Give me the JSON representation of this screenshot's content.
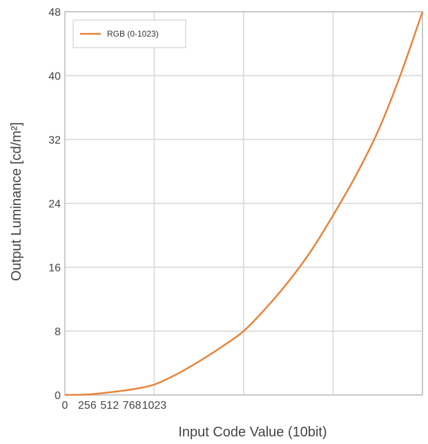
{
  "chart_data": {
    "type": "line",
    "xlabel": "Input Code Value (10bit)",
    "ylabel": "Output Luminance [cd/m²]",
    "xlim": [
      0,
      4095
    ],
    "ylim": [
      0,
      48
    ],
    "x_ticks": [
      {
        "value": 0,
        "label": "0"
      },
      {
        "value": 256,
        "label": "256"
      },
      {
        "value": 512,
        "label": "512"
      },
      {
        "value": 768,
        "label": "768"
      },
      {
        "value": 1023,
        "label": "1023"
      }
    ],
    "x_grid": [
      1023,
      2047,
      3071,
      4095
    ],
    "y_ticks": [
      0,
      8,
      16,
      24,
      32,
      40,
      48
    ],
    "grid": true,
    "legend": {
      "placement": "top-left"
    },
    "series": [
      {
        "name": "RGB (0-1023)",
        "color": "#e8833a",
        "x": [
          0,
          256,
          512,
          768,
          1023,
          1280,
          1536,
          1792,
          2047,
          2304,
          2560,
          2816,
          3071,
          3328,
          3584,
          3840,
          4095
        ],
        "y": [
          0.0,
          0.06,
          0.33,
          0.7,
          1.3,
          2.6,
          4.2,
          6.0,
          8.0,
          10.9,
          14.2,
          18.0,
          22.5,
          27.4,
          33.0,
          40.0,
          48.0
        ]
      }
    ]
  }
}
